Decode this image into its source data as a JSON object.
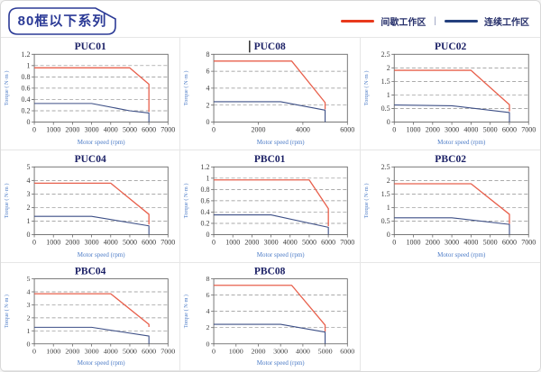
{
  "header": {
    "title": "80框以下系列",
    "legend_separator": "|",
    "legend": [
      {
        "name": "intermittent-zone",
        "label": "间歇工作区",
        "color": "#e8391c"
      },
      {
        "name": "continuous-zone",
        "label": "连续工作区",
        "color": "#24407e"
      }
    ]
  },
  "colors": {
    "accent_red": "#e8391c",
    "accent_blue": "#24407e",
    "chart_red": "#e8604c",
    "chart_blue": "#3d4f86",
    "title_navy": "#1c2166",
    "axis_label_blue": "#4d7cc7",
    "tick_label": "#3c3c3c",
    "grid_line": "#8f8f8f",
    "plot_border": "#6b6b6b",
    "badge_navy": "#2b3a96"
  },
  "chart_data": [
    {
      "type": "line",
      "title": "PUC01",
      "text_cursor": false,
      "xlabel": "Motor speed (rpm)",
      "ylabel": "Torque ( N·m )",
      "xlim": [
        0,
        7000
      ],
      "ylim": [
        0,
        1.2
      ],
      "xticks": [
        0,
        1000,
        2000,
        3000,
        4000,
        5000,
        6000,
        7000
      ],
      "yticks": [
        0,
        0.2,
        0.4,
        0.6,
        0.8,
        1,
        1.2
      ],
      "grid": "dashed-horizontal",
      "legend_position": "none",
      "series": [
        {
          "name": "间歇工作区",
          "color_key": "chart_red",
          "points": [
            [
              0,
              0.96
            ],
            [
              5000,
              0.96
            ],
            [
              6000,
              0.67
            ],
            [
              6000,
              0.18
            ]
          ]
        },
        {
          "name": "连续工作区",
          "color_key": "chart_blue",
          "points": [
            [
              0,
              0.33
            ],
            [
              3000,
              0.33
            ],
            [
              5000,
              0.2
            ],
            [
              6000,
              0.16
            ],
            [
              6000,
              0
            ]
          ]
        }
      ]
    },
    {
      "type": "line",
      "title": "PUC08",
      "text_cursor": true,
      "xlabel": "Motor speed (rpm)",
      "ylabel": "Torque ( N·m )",
      "xlim": [
        0,
        6000
      ],
      "ylim": [
        0,
        8
      ],
      "xticks": [
        0,
        2000,
        4000,
        6000
      ],
      "yticks": [
        0,
        2,
        4,
        6,
        8
      ],
      "grid": "dashed-horizontal",
      "legend_position": "none",
      "series": [
        {
          "name": "间歇工作区",
          "color_key": "chart_red",
          "points": [
            [
              0,
              7.2
            ],
            [
              3500,
              7.2
            ],
            [
              5000,
              2.3
            ],
            [
              5000,
              1.5
            ]
          ]
        },
        {
          "name": "连续工作区",
          "color_key": "chart_blue",
          "points": [
            [
              0,
              2.4
            ],
            [
              3000,
              2.4
            ],
            [
              5000,
              1.4
            ],
            [
              5000,
              0
            ]
          ]
        }
      ]
    },
    {
      "type": "line",
      "title": "PUC02",
      "text_cursor": false,
      "xlabel": "Motor speed (rpm)",
      "ylabel": "Torque ( N·m )",
      "xlim": [
        0,
        7000
      ],
      "ylim": [
        0,
        2.5
      ],
      "xticks": [
        0,
        1000,
        2000,
        3000,
        4000,
        5000,
        6000,
        7000
      ],
      "yticks": [
        0,
        0.5,
        1,
        1.5,
        2,
        2.5
      ],
      "grid": "dashed-horizontal",
      "legend_position": "none",
      "series": [
        {
          "name": "间歇工作区",
          "color_key": "chart_red",
          "points": [
            [
              0,
              1.91
            ],
            [
              4000,
              1.91
            ],
            [
              6000,
              0.64
            ],
            [
              6000,
              0.4
            ]
          ]
        },
        {
          "name": "连续工作区",
          "color_key": "chart_blue",
          "points": [
            [
              0,
              0.63
            ],
            [
              3000,
              0.6
            ],
            [
              6000,
              0.35
            ],
            [
              6000,
              0
            ]
          ]
        }
      ]
    },
    {
      "type": "line",
      "title": "PUC04",
      "text_cursor": false,
      "xlabel": "Motor speed (rpm)",
      "ylabel": "Torque ( N·m )",
      "xlim": [
        0,
        7000
      ],
      "ylim": [
        0,
        5
      ],
      "xticks": [
        0,
        1000,
        2000,
        3000,
        4000,
        5000,
        6000,
        7000
      ],
      "yticks": [
        0,
        1,
        2,
        3,
        4,
        5
      ],
      "grid": "dashed-horizontal",
      "legend_position": "none",
      "series": [
        {
          "name": "间歇工作区",
          "color_key": "chart_red",
          "points": [
            [
              0,
              3.8
            ],
            [
              4000,
              3.8
            ],
            [
              6000,
              1.5
            ],
            [
              6000,
              0.75
            ]
          ]
        },
        {
          "name": "连续工作区",
          "color_key": "chart_blue",
          "points": [
            [
              0,
              1.35
            ],
            [
              3000,
              1.35
            ],
            [
              6000,
              0.65
            ],
            [
              6000,
              0
            ]
          ]
        }
      ]
    },
    {
      "type": "line",
      "title": "PBC01",
      "text_cursor": false,
      "xlabel": "Motor speed (rpm)",
      "ylabel": "Torque ( N·m )",
      "xlim": [
        0,
        7000
      ],
      "ylim": [
        0,
        1.2
      ],
      "xticks": [
        0,
        1000,
        2000,
        3000,
        4000,
        5000,
        6000,
        7000
      ],
      "yticks": [
        0,
        0.2,
        0.4,
        0.6,
        0.8,
        1,
        1.2
      ],
      "grid": "dashed-horizontal",
      "legend_position": "none",
      "series": [
        {
          "name": "间歇工作区",
          "color_key": "chart_red",
          "points": [
            [
              0,
              0.97
            ],
            [
              5000,
              0.97
            ],
            [
              6000,
              0.46
            ],
            [
              6000,
              0.15
            ]
          ]
        },
        {
          "name": "连续工作区",
          "color_key": "chart_blue",
          "points": [
            [
              0,
              0.35
            ],
            [
              3000,
              0.35
            ],
            [
              6000,
              0.13
            ],
            [
              6000,
              0
            ]
          ]
        }
      ]
    },
    {
      "type": "line",
      "title": "PBC02",
      "text_cursor": false,
      "xlabel": "Motor speed (rpm)",
      "ylabel": "Torque ( N·m )",
      "xlim": [
        0,
        7000
      ],
      "ylim": [
        0,
        2.5
      ],
      "xticks": [
        0,
        1000,
        2000,
        3000,
        4000,
        5000,
        6000,
        7000
      ],
      "yticks": [
        0,
        0.5,
        1,
        1.5,
        2,
        2.5
      ],
      "grid": "dashed-horizontal",
      "legend_position": "none",
      "series": [
        {
          "name": "间歇工作区",
          "color_key": "chart_red",
          "points": [
            [
              0,
              1.88
            ],
            [
              4000,
              1.88
            ],
            [
              6000,
              0.75
            ],
            [
              6000,
              0.4
            ]
          ]
        },
        {
          "name": "连续工作区",
          "color_key": "chart_blue",
          "points": [
            [
              0,
              0.62
            ],
            [
              3000,
              0.62
            ],
            [
              6000,
              0.38
            ],
            [
              6000,
              0
            ]
          ]
        }
      ]
    },
    {
      "type": "line",
      "title": "PBC04",
      "text_cursor": false,
      "xlabel": "Motor speed (rpm)",
      "ylabel": "Torque ( N·m )",
      "xlim": [
        0,
        7000
      ],
      "ylim": [
        0,
        5
      ],
      "xticks": [
        0,
        1000,
        2000,
        3000,
        4000,
        5000,
        6000,
        7000
      ],
      "yticks": [
        0,
        1,
        2,
        3,
        4,
        5
      ],
      "grid": "dashed-horizontal",
      "legend_position": "none",
      "series": [
        {
          "name": "间歇工作区",
          "color_key": "chart_red",
          "points": [
            [
              0,
              3.85
            ],
            [
              4000,
              3.85
            ],
            [
              6000,
              1.5
            ],
            [
              6000,
              1.3
            ]
          ]
        },
        {
          "name": "连续工作区",
          "color_key": "chart_blue",
          "points": [
            [
              0,
              1.27
            ],
            [
              3000,
              1.27
            ],
            [
              6000,
              0.6
            ],
            [
              6000,
              0
            ]
          ]
        }
      ]
    },
    {
      "type": "line",
      "title": "PBC08",
      "text_cursor": false,
      "xlabel": "Motor speed (rpm)",
      "ylabel": "Torque ( N·m )",
      "xlim": [
        0,
        6000
      ],
      "ylim": [
        0,
        8
      ],
      "xticks": [
        0,
        1000,
        2000,
        3000,
        4000,
        5000,
        6000
      ],
      "yticks": [
        0,
        2,
        4,
        6,
        8
      ],
      "grid": "dashed-horizontal",
      "legend_position": "none",
      "series": [
        {
          "name": "间歇工作区",
          "color_key": "chart_red",
          "points": [
            [
              0,
              7.2
            ],
            [
              3500,
              7.2
            ],
            [
              5000,
              2.3
            ],
            [
              5000,
              1.5
            ]
          ]
        },
        {
          "name": "连续工作区",
          "color_key": "chart_blue",
          "points": [
            [
              0,
              2.4
            ],
            [
              3000,
              2.4
            ],
            [
              5000,
              1.45
            ],
            [
              5000,
              0
            ]
          ]
        }
      ]
    }
  ]
}
